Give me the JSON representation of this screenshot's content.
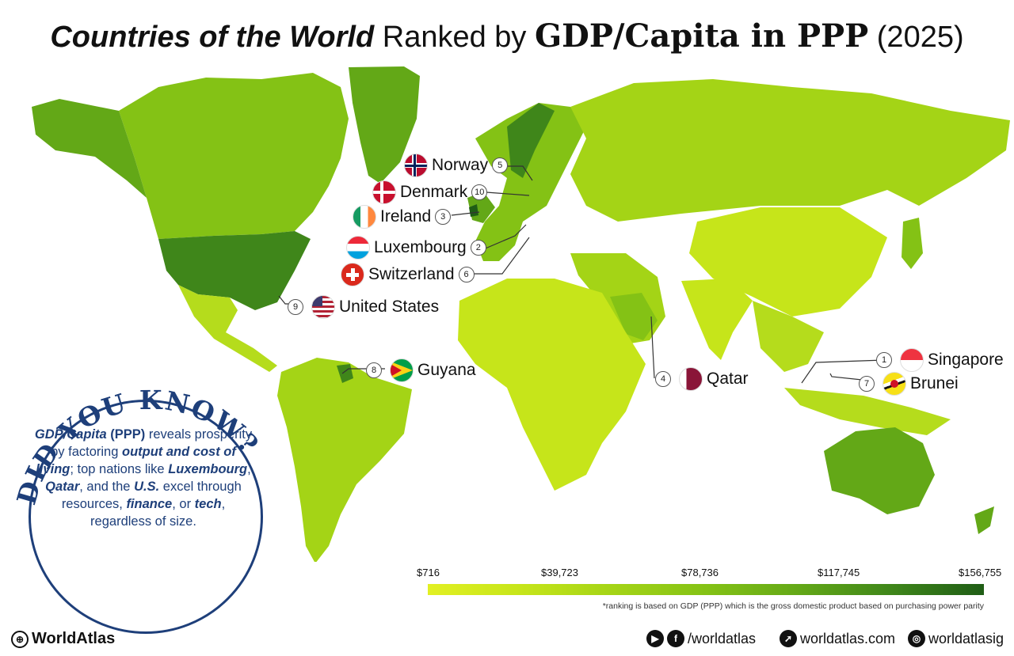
{
  "title": {
    "part1": "Countries of the World",
    "part2": "Ranked by",
    "part3": "GDP/Capita in PPP",
    "part4": "(2025)"
  },
  "labels": {
    "norway": {
      "name": "Norway",
      "rank": "5"
    },
    "denmark": {
      "name": "Denmark",
      "rank": "10"
    },
    "ireland": {
      "name": "Ireland",
      "rank": "3"
    },
    "luxembourg": {
      "name": "Luxembourg",
      "rank": "2"
    },
    "switzerland": {
      "name": "Switzerland",
      "rank": "6"
    },
    "united_states": {
      "name": "United States",
      "rank": "9"
    },
    "guyana": {
      "name": "Guyana",
      "rank": "8"
    },
    "qatar": {
      "name": "Qatar",
      "rank": "4"
    },
    "singapore": {
      "name": "Singapore",
      "rank": "1"
    },
    "brunei": {
      "name": "Brunei",
      "rank": "7"
    }
  },
  "did_you_know": {
    "heading": "DID YOU KNOW?",
    "s1": "GDP/Capita",
    "s2": "(PPP)",
    "s3": "reveals prosperity by factoring",
    "s4": "output and cost of living",
    "s5": "; top nations like",
    "s6": "Luxembourg",
    "s7": ",",
    "s8": "Qatar",
    "s9": ", and the",
    "s10": "U.S.",
    "s11": "excel through resources,",
    "s12": "finance",
    "s13": ", or",
    "s14": "tech",
    "s15": ", regardless of size."
  },
  "legend": {
    "ticks": [
      "$716",
      "$39,723",
      "$78,736",
      "$117,745",
      "$156,755"
    ],
    "colors": [
      "#e2f023",
      "#c6e51a",
      "#a4d416",
      "#84c215",
      "#63a817",
      "#3f861a",
      "#1f5d16"
    ]
  },
  "note": "*ranking is based on GDP (PPP) which is the gross domestic product based on purchasing power parity",
  "footer": {
    "brand": "WorldAtlas",
    "social": "/worldatlas",
    "site": "worldatlas.com",
    "insta": "worldatlasig"
  },
  "icons": [
    "globe-icon",
    "youtube-icon",
    "facebook-icon",
    "cursor-icon",
    "instagram-icon"
  ]
}
